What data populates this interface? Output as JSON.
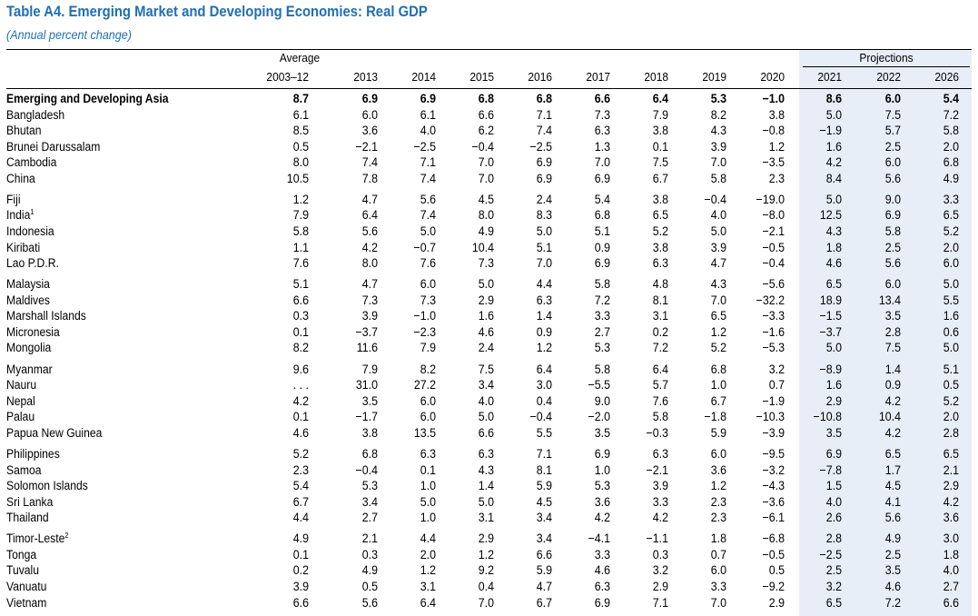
{
  "title": "Table A4. Emerging Market and Developing Economies: Real GDP",
  "subtitle": "(Annual percent change)",
  "header": {
    "average_label": "Average",
    "projections_label": "Projections",
    "columns": [
      "2003–12",
      "2013",
      "2014",
      "2015",
      "2016",
      "2017",
      "2018",
      "2019",
      "2020",
      "2021",
      "2022",
      "2026"
    ]
  },
  "groups": [
    [
      {
        "name": "Emerging and Developing Asia",
        "bold": true,
        "values": [
          "8.7",
          "6.9",
          "6.9",
          "6.8",
          "6.8",
          "6.6",
          "6.4",
          "5.3",
          "−1.0",
          "8.6",
          "6.0",
          "5.4"
        ]
      },
      {
        "name": "Bangladesh",
        "values": [
          "6.1",
          "6.0",
          "6.1",
          "6.6",
          "7.1",
          "7.3",
          "7.9",
          "8.2",
          "3.8",
          "5.0",
          "7.5",
          "7.2"
        ]
      },
      {
        "name": "Bhutan",
        "values": [
          "8.5",
          "3.6",
          "4.0",
          "6.2",
          "7.4",
          "6.3",
          "3.8",
          "4.3",
          "−0.8",
          "−1.9",
          "5.7",
          "5.8"
        ]
      },
      {
        "name": "Brunei Darussalam",
        "values": [
          "0.5",
          "−2.1",
          "−2.5",
          "−0.4",
          "−2.5",
          "1.3",
          "0.1",
          "3.9",
          "1.2",
          "1.6",
          "2.5",
          "2.0"
        ]
      },
      {
        "name": "Cambodia",
        "values": [
          "8.0",
          "7.4",
          "7.1",
          "7.0",
          "6.9",
          "7.0",
          "7.5",
          "7.0",
          "−3.5",
          "4.2",
          "6.0",
          "6.8"
        ]
      },
      {
        "name": "China",
        "values": [
          "10.5",
          "7.8",
          "7.4",
          "7.0",
          "6.9",
          "6.9",
          "6.7",
          "5.8",
          "2.3",
          "8.4",
          "5.6",
          "4.9"
        ]
      }
    ],
    [
      {
        "name": "Fiji",
        "values": [
          "1.2",
          "4.7",
          "5.6",
          "4.5",
          "2.4",
          "5.4",
          "3.8",
          "−0.4",
          "−19.0",
          "5.0",
          "9.0",
          "3.3"
        ]
      },
      {
        "name": "India",
        "sup": "1",
        "values": [
          "7.9",
          "6.4",
          "7.4",
          "8.0",
          "8.3",
          "6.8",
          "6.5",
          "4.0",
          "−8.0",
          "12.5",
          "6.9",
          "6.5"
        ]
      },
      {
        "name": "Indonesia",
        "values": [
          "5.8",
          "5.6",
          "5.0",
          "4.9",
          "5.0",
          "5.1",
          "5.2",
          "5.0",
          "−2.1",
          "4.3",
          "5.8",
          "5.2"
        ]
      },
      {
        "name": "Kiribati",
        "values": [
          "1.1",
          "4.2",
          "−0.7",
          "10.4",
          "5.1",
          "0.9",
          "3.8",
          "3.9",
          "−0.5",
          "1.8",
          "2.5",
          "2.0"
        ]
      },
      {
        "name": "Lao P.D.R.",
        "values": [
          "7.6",
          "8.0",
          "7.6",
          "7.3",
          "7.0",
          "6.9",
          "6.3",
          "4.7",
          "−0.4",
          "4.6",
          "5.6",
          "6.0"
        ]
      }
    ],
    [
      {
        "name": "Malaysia",
        "values": [
          "5.1",
          "4.7",
          "6.0",
          "5.0",
          "4.4",
          "5.8",
          "4.8",
          "4.3",
          "−5.6",
          "6.5",
          "6.0",
          "5.0"
        ]
      },
      {
        "name": "Maldives",
        "values": [
          "6.6",
          "7.3",
          "7.3",
          "2.9",
          "6.3",
          "7.2",
          "8.1",
          "7.0",
          "−32.2",
          "18.9",
          "13.4",
          "5.5"
        ]
      },
      {
        "name": "Marshall Islands",
        "values": [
          "0.3",
          "3.9",
          "−1.0",
          "1.6",
          "1.4",
          "3.3",
          "3.1",
          "6.5",
          "−3.3",
          "−1.5",
          "3.5",
          "1.6"
        ]
      },
      {
        "name": "Micronesia",
        "values": [
          "0.1",
          "−3.7",
          "−2.3",
          "4.6",
          "0.9",
          "2.7",
          "0.2",
          "1.2",
          "−1.6",
          "−3.7",
          "2.8",
          "0.6"
        ]
      },
      {
        "name": "Mongolia",
        "values": [
          "8.2",
          "11.6",
          "7.9",
          "2.4",
          "1.2",
          "5.3",
          "7.2",
          "5.2",
          "−5.3",
          "5.0",
          "7.5",
          "5.0"
        ]
      }
    ],
    [
      {
        "name": "Myanmar",
        "values": [
          "9.6",
          "7.9",
          "8.2",
          "7.5",
          "6.4",
          "5.8",
          "6.4",
          "6.8",
          "3.2",
          "−8.9",
          "1.4",
          "5.1"
        ]
      },
      {
        "name": "Nauru",
        "values": [
          ". . .",
          "31.0",
          "27.2",
          "3.4",
          "3.0",
          "−5.5",
          "5.7",
          "1.0",
          "0.7",
          "1.6",
          "0.9",
          "0.5"
        ]
      },
      {
        "name": "Nepal",
        "values": [
          "4.2",
          "3.5",
          "6.0",
          "4.0",
          "0.4",
          "9.0",
          "7.6",
          "6.7",
          "−1.9",
          "2.9",
          "4.2",
          "5.2"
        ]
      },
      {
        "name": "Palau",
        "values": [
          "0.1",
          "−1.7",
          "6.0",
          "5.0",
          "−0.4",
          "−2.0",
          "5.8",
          "−1.8",
          "−10.3",
          "−10.8",
          "10.4",
          "2.0"
        ]
      },
      {
        "name": "Papua New Guinea",
        "values": [
          "4.6",
          "3.8",
          "13.5",
          "6.6",
          "5.5",
          "3.5",
          "−0.3",
          "5.9",
          "−3.9",
          "3.5",
          "4.2",
          "2.8"
        ]
      }
    ],
    [
      {
        "name": "Philippines",
        "values": [
          "5.2",
          "6.8",
          "6.3",
          "6.3",
          "7.1",
          "6.9",
          "6.3",
          "6.0",
          "−9.5",
          "6.9",
          "6.5",
          "6.5"
        ]
      },
      {
        "name": "Samoa",
        "values": [
          "2.3",
          "−0.4",
          "0.1",
          "4.3",
          "8.1",
          "1.0",
          "−2.1",
          "3.6",
          "−3.2",
          "−7.8",
          "1.7",
          "2.1"
        ]
      },
      {
        "name": "Solomon Islands",
        "values": [
          "5.4",
          "5.3",
          "1.0",
          "1.4",
          "5.9",
          "5.3",
          "3.9",
          "1.2",
          "−4.3",
          "1.5",
          "4.5",
          "2.9"
        ]
      },
      {
        "name": "Sri Lanka",
        "values": [
          "6.7",
          "3.4",
          "5.0",
          "5.0",
          "4.5",
          "3.6",
          "3.3",
          "2.3",
          "−3.6",
          "4.0",
          "4.1",
          "4.2"
        ]
      },
      {
        "name": "Thailand",
        "values": [
          "4.4",
          "2.7",
          "1.0",
          "3.1",
          "3.4",
          "4.2",
          "4.2",
          "2.3",
          "−6.1",
          "2.6",
          "5.6",
          "3.6"
        ]
      }
    ],
    [
      {
        "name": "Timor-Leste",
        "sup": "2",
        "values": [
          "4.9",
          "2.1",
          "4.4",
          "2.9",
          "3.4",
          "−4.1",
          "−1.1",
          "1.8",
          "−6.8",
          "2.8",
          "4.9",
          "3.0"
        ]
      },
      {
        "name": "Tonga",
        "values": [
          "0.1",
          "0.3",
          "2.0",
          "1.2",
          "6.6",
          "3.3",
          "0.3",
          "0.7",
          "−0.5",
          "−2.5",
          "2.5",
          "1.8"
        ]
      },
      {
        "name": "Tuvalu",
        "values": [
          "0.2",
          "4.9",
          "1.2",
          "9.2",
          "5.9",
          "4.6",
          "3.2",
          "6.0",
          "0.5",
          "2.5",
          "3.5",
          "4.0"
        ]
      },
      {
        "name": "Vanuatu",
        "values": [
          "3.9",
          "0.5",
          "3.1",
          "0.4",
          "4.7",
          "6.3",
          "2.9",
          "3.3",
          "−9.2",
          "3.2",
          "4.6",
          "2.7"
        ]
      },
      {
        "name": "Vietnam",
        "values": [
          "6.6",
          "5.6",
          "6.4",
          "7.0",
          "6.7",
          "6.9",
          "7.1",
          "7.0",
          "2.9",
          "6.5",
          "7.2",
          "6.6"
        ]
      }
    ]
  ]
}
